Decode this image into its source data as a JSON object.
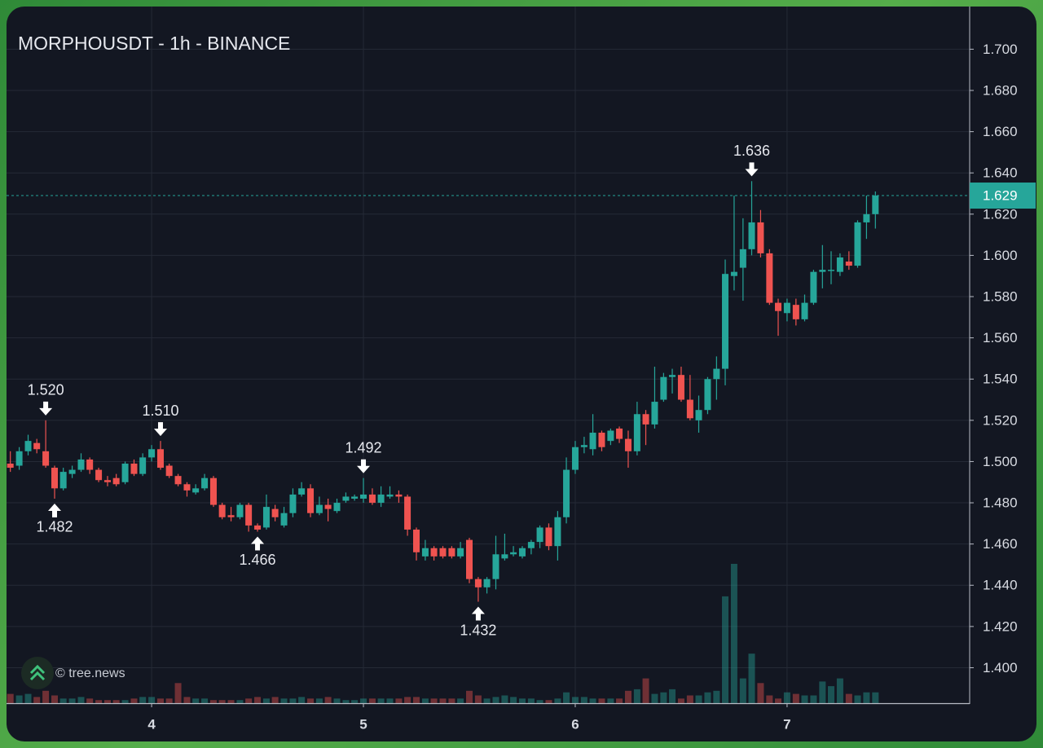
{
  "chart_data": {
    "type": "candlestick",
    "title": "MORPHOUSDT - 1h - BINANCE",
    "watermark": "© tree.news",
    "up_color": "#26a69a",
    "down_color": "#ef5350",
    "grid": true,
    "xlim": [
      3.315,
      7.862
    ],
    "xticks": [
      4,
      5,
      6,
      7
    ],
    "ylim": [
      1.3828,
      1.7207
    ],
    "yticks": [
      {
        "value": 1.4,
        "label": "1.400"
      },
      {
        "value": 1.42,
        "label": "1.420"
      },
      {
        "value": 1.44,
        "label": "1.440"
      },
      {
        "value": 1.46,
        "label": "1.460"
      },
      {
        "value": 1.48,
        "label": "1.480"
      },
      {
        "value": 1.5,
        "label": "1.500"
      },
      {
        "value": 1.52,
        "label": "1.520"
      },
      {
        "value": 1.54,
        "label": "1.540"
      },
      {
        "value": 1.56,
        "label": "1.560"
      },
      {
        "value": 1.58,
        "label": "1.580"
      },
      {
        "value": 1.6,
        "label": "1.600"
      },
      {
        "value": 1.62,
        "label": "1.620"
      },
      {
        "value": 1.64,
        "label": "1.640"
      },
      {
        "value": 1.66,
        "label": "1.660"
      },
      {
        "value": 1.68,
        "label": "1.680"
      },
      {
        "value": 1.7,
        "label": "1.700"
      }
    ],
    "last_price": {
      "value": 1.629,
      "label": "1.629"
    },
    "volume_lim": [
      0,
      100
    ],
    "x": [
      3.333,
      3.375,
      3.417,
      3.458,
      3.5,
      3.542,
      3.583,
      3.625,
      3.667,
      3.708,
      3.75,
      3.792,
      3.833,
      3.875,
      3.917,
      3.958,
      4,
      4.042,
      4.083,
      4.125,
      4.167,
      4.208,
      4.25,
      4.292,
      4.333,
      4.375,
      4.417,
      4.458,
      4.5,
      4.542,
      4.583,
      4.625,
      4.667,
      4.708,
      4.75,
      4.792,
      4.833,
      4.875,
      4.917,
      4.958,
      5,
      5.042,
      5.083,
      5.125,
      5.167,
      5.208,
      5.25,
      5.292,
      5.333,
      5.375,
      5.417,
      5.458,
      5.5,
      5.542,
      5.583,
      5.625,
      5.667,
      5.708,
      5.75,
      5.792,
      5.833,
      5.875,
      5.917,
      5.958,
      6,
      6.042,
      6.083,
      6.125,
      6.167,
      6.208,
      6.25,
      6.292,
      6.333,
      6.375,
      6.417,
      6.458,
      6.5,
      6.542,
      6.583,
      6.625,
      6.667,
      6.708,
      6.75,
      6.792,
      6.833,
      6.875,
      6.917,
      6.958,
      7,
      7.042,
      7.083,
      7.125,
      7.167,
      7.208,
      7.25,
      7.292,
      7.333,
      7.375,
      7.417
    ],
    "open": [
      1.499,
      1.498,
      1.505,
      1.509,
      1.505,
      1.497,
      1.487,
      1.494,
      1.496,
      1.501,
      1.496,
      1.491,
      1.492,
      1.49,
      1.499,
      1.494,
      1.502,
      1.506,
      1.498,
      1.493,
      1.489,
      1.485,
      1.487,
      1.492,
      1.479,
      1.474,
      1.473,
      1.479,
      1.469,
      1.468,
      1.477,
      1.469,
      1.475,
      1.484,
      1.487,
      1.475,
      1.479,
      1.476,
      1.481,
      1.482,
      1.482,
      1.484,
      1.48,
      1.483,
      1.484,
      1.483,
      1.467,
      1.454,
      1.458,
      1.458,
      1.458,
      1.454,
      1.462,
      1.443,
      1.439,
      1.443,
      1.453,
      1.455,
      1.454,
      1.458,
      1.461,
      1.468,
      1.459,
      1.473,
      1.496,
      1.507,
      1.506,
      1.514,
      1.51,
      1.516,
      1.511,
      1.505,
      1.523,
      1.518,
      1.53,
      1.541,
      1.542,
      1.53,
      1.52,
      1.525,
      1.54,
      1.545,
      1.59,
      1.594,
      1.603,
      1.616,
      1.601,
      1.577,
      1.572,
      1.576,
      1.569,
      1.577,
      1.592,
      1.593,
      1.592,
      1.597,
      1.595,
      1.616,
      1.62
    ],
    "high": [
      1.505,
      1.507,
      1.513,
      1.511,
      1.52,
      1.498,
      1.497,
      1.498,
      1.504,
      1.502,
      1.497,
      1.493,
      1.494,
      1.5,
      1.501,
      1.504,
      1.508,
      1.51,
      1.499,
      1.494,
      1.49,
      1.489,
      1.494,
      1.493,
      1.48,
      1.478,
      1.48,
      1.48,
      1.47,
      1.484,
      1.479,
      1.478,
      1.487,
      1.49,
      1.489,
      1.483,
      1.482,
      1.482,
      1.485,
      1.484,
      1.492,
      1.487,
      1.488,
      1.488,
      1.486,
      1.484,
      1.468,
      1.462,
      1.459,
      1.459,
      1.459,
      1.461,
      1.463,
      1.444,
      1.444,
      1.464,
      1.465,
      1.459,
      1.459,
      1.462,
      1.469,
      1.47,
      1.476,
      1.502,
      1.51,
      1.512,
      1.523,
      1.515,
      1.516,
      1.517,
      1.515,
      1.529,
      1.525,
      1.546,
      1.543,
      1.545,
      1.546,
      1.542,
      1.532,
      1.541,
      1.551,
      1.598,
      1.629,
      1.618,
      1.636,
      1.622,
      1.603,
      1.579,
      1.579,
      1.579,
      1.581,
      1.593,
      1.605,
      1.602,
      1.601,
      1.602,
      1.617,
      1.629,
      1.631
    ],
    "low": [
      1.495,
      1.496,
      1.503,
      1.504,
      1.497,
      1.482,
      1.486,
      1.492,
      1.495,
      1.494,
      1.49,
      1.488,
      1.488,
      1.489,
      1.493,
      1.493,
      1.5,
      1.496,
      1.492,
      1.488,
      1.483,
      1.484,
      1.486,
      1.478,
      1.472,
      1.471,
      1.472,
      1.466,
      1.466,
      1.467,
      1.471,
      1.468,
      1.473,
      1.483,
      1.473,
      1.474,
      1.471,
      1.475,
      1.48,
      1.481,
      1.48,
      1.479,
      1.478,
      1.482,
      1.48,
      1.464,
      1.452,
      1.452,
      1.452,
      1.453,
      1.453,
      1.453,
      1.441,
      1.432,
      1.436,
      1.438,
      1.452,
      1.454,
      1.453,
      1.455,
      1.458,
      1.457,
      1.452,
      1.47,
      1.494,
      1.504,
      1.503,
      1.505,
      1.508,
      1.509,
      1.497,
      1.503,
      1.508,
      1.516,
      1.529,
      1.533,
      1.529,
      1.52,
      1.514,
      1.523,
      1.53,
      1.537,
      1.583,
      1.578,
      1.6,
      1.599,
      1.576,
      1.561,
      1.568,
      1.566,
      1.568,
      1.576,
      1.584,
      1.586,
      1.59,
      1.593,
      1.594,
      1.608,
      1.613
    ],
    "close": [
      1.497,
      1.505,
      1.51,
      1.506,
      1.498,
      1.487,
      1.495,
      1.496,
      1.501,
      1.496,
      1.491,
      1.49,
      1.489,
      1.499,
      1.494,
      1.502,
      1.506,
      1.497,
      1.493,
      1.489,
      1.486,
      1.487,
      1.492,
      1.479,
      1.473,
      1.473,
      1.479,
      1.469,
      1.467,
      1.478,
      1.473,
      1.475,
      1.484,
      1.487,
      1.475,
      1.479,
      1.477,
      1.48,
      1.483,
      1.483,
      1.484,
      1.48,
      1.484,
      1.484,
      1.483,
      1.467,
      1.456,
      1.458,
      1.454,
      1.454,
      1.454,
      1.458,
      1.443,
      1.439,
      1.443,
      1.455,
      1.455,
      1.456,
      1.458,
      1.461,
      1.468,
      1.459,
      1.473,
      1.496,
      1.507,
      1.508,
      1.514,
      1.507,
      1.515,
      1.511,
      1.505,
      1.523,
      1.518,
      1.529,
      1.541,
      1.542,
      1.53,
      1.521,
      1.525,
      1.54,
      1.545,
      1.591,
      1.592,
      1.603,
      1.616,
      1.601,
      1.577,
      1.573,
      1.577,
      1.569,
      1.577,
      1.592,
      1.593,
      1.593,
      1.599,
      1.595,
      1.616,
      1.62,
      1.629
    ],
    "volume": [
      6,
      5,
      6,
      4,
      8,
      5,
      3,
      3,
      4,
      3,
      2,
      2,
      2,
      2,
      3,
      4,
      4,
      3,
      3,
      13,
      4,
      3,
      3,
      2,
      2,
      2,
      2,
      3,
      4,
      3,
      4,
      3,
      3,
      4,
      3,
      3,
      4,
      3,
      2,
      2,
      3,
      3,
      3,
      3,
      3,
      4,
      4,
      3,
      3,
      3,
      3,
      3,
      8,
      5,
      3,
      4,
      5,
      4,
      3,
      3,
      2,
      2,
      3,
      7,
      4,
      4,
      3,
      3,
      3,
      3,
      8,
      9,
      16,
      6,
      7,
      9,
      3,
      5,
      5,
      7,
      8,
      69,
      90,
      16,
      32,
      13,
      5,
      3,
      7,
      6,
      5,
      5,
      14,
      11,
      16,
      6,
      5,
      7,
      7
    ]
  },
  "annotations": [
    {
      "kind": "high",
      "x": 3.5,
      "value": 1.52,
      "label": "1.520"
    },
    {
      "kind": "low",
      "x": 3.542,
      "value": 1.482,
      "label": "1.482"
    },
    {
      "kind": "high",
      "x": 4.042,
      "value": 1.51,
      "label": "1.510"
    },
    {
      "kind": "low",
      "x": 4.5,
      "value": 1.466,
      "label": "1.466"
    },
    {
      "kind": "high",
      "x": 5,
      "value": 1.492,
      "label": "1.492"
    },
    {
      "kind": "low",
      "x": 5.542,
      "value": 1.432,
      "label": "1.432"
    },
    {
      "kind": "high",
      "x": 6.833,
      "value": 1.636,
      "label": "1.636"
    }
  ]
}
